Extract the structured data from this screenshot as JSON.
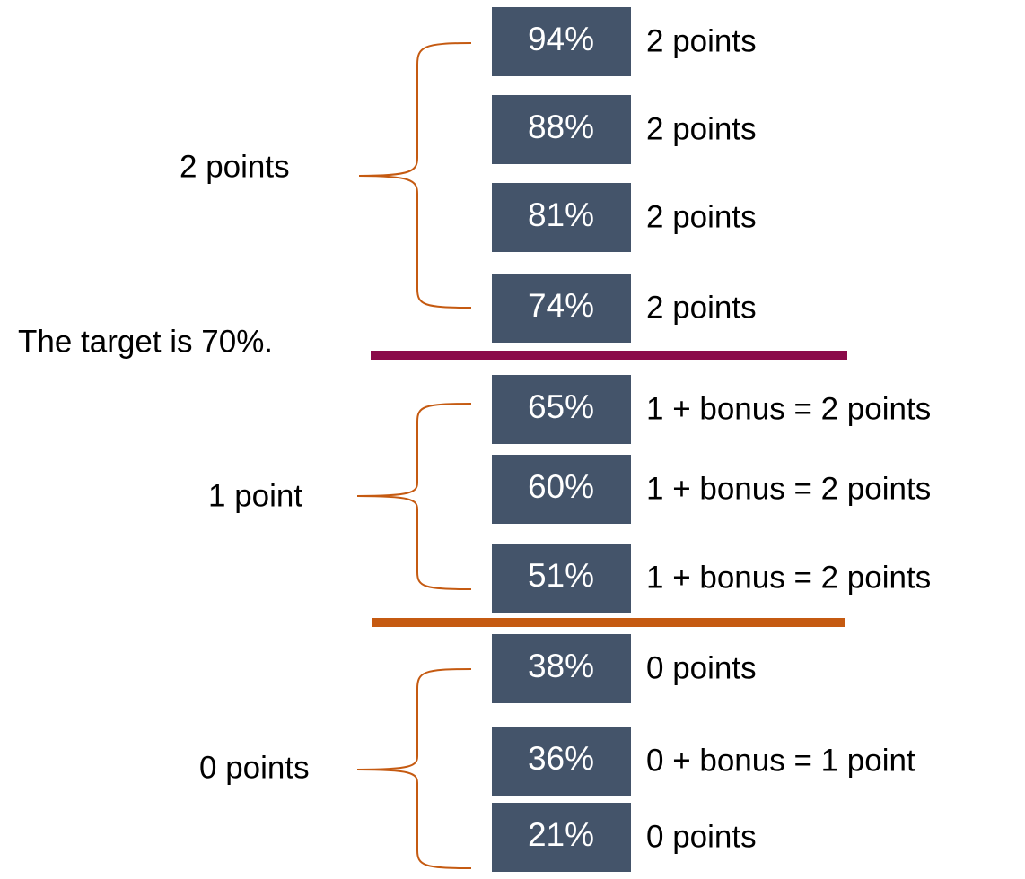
{
  "target": "The target is 70%.",
  "groups": [
    {
      "label": "2 points",
      "items": [
        {
          "percent": "94%",
          "points": "2 points"
        },
        {
          "percent": "88%",
          "points": "2 points"
        },
        {
          "percent": "81%",
          "points": "2 points"
        },
        {
          "percent": "74%",
          "points": "2 points"
        }
      ]
    },
    {
      "label": "1 point",
      "items": [
        {
          "percent": "65%",
          "points": "1 + bonus = 2 points"
        },
        {
          "percent": "60%",
          "points": "1 + bonus = 2 points"
        },
        {
          "percent": "51%",
          "points": "1 + bonus = 2 points"
        }
      ]
    },
    {
      "label": "0 points",
      "items": [
        {
          "percent": "38%",
          "points": "0 points"
        },
        {
          "percent": "36%",
          "points": "0 + bonus = 1 point"
        },
        {
          "percent": "21%",
          "points": "0 points"
        }
      ]
    }
  ]
}
